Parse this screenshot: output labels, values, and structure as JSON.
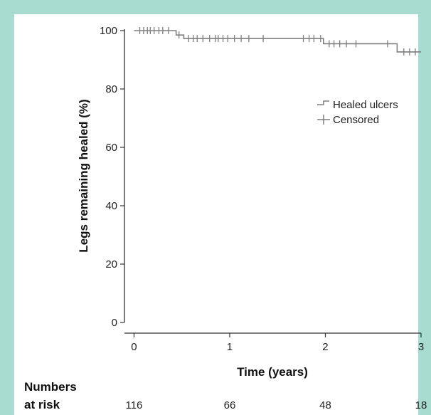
{
  "colors": {
    "frame_background": "#a8dcd0",
    "panel_background": "#ffffff",
    "curve": "#7f7f7f",
    "axis": "#333333"
  },
  "chart_data": {
    "type": "line",
    "subtype": "kaplan-meier",
    "title": "",
    "xlabel": "Time (years)",
    "ylabel": "Legs remaining healed (%)",
    "xlim": [
      -0.1,
      3.0
    ],
    "ylim": [
      0,
      100
    ],
    "xticks": [
      0,
      1,
      2,
      3
    ],
    "yticks": [
      0,
      20,
      40,
      60,
      80,
      100
    ],
    "grid": false,
    "legend": {
      "placement": "right",
      "entries": [
        {
          "label": "Healed ulcers",
          "symbol": "step-line"
        },
        {
          "label": "Censored",
          "symbol": "cross"
        }
      ]
    },
    "series": [
      {
        "name": "Healed ulcers",
        "steps": [
          {
            "x": 0.0,
            "y": 100
          },
          {
            "x": 0.44,
            "y": 98.5
          },
          {
            "x": 0.52,
            "y": 97.3
          },
          {
            "x": 1.98,
            "y": 95.5
          },
          {
            "x": 2.75,
            "y": 92.7
          },
          {
            "x": 3.0,
            "y": 92.7
          }
        ],
        "censored": [
          {
            "x": 0.06,
            "y": 100
          },
          {
            "x": 0.1,
            "y": 100
          },
          {
            "x": 0.14,
            "y": 100
          },
          {
            "x": 0.17,
            "y": 100
          },
          {
            "x": 0.21,
            "y": 100
          },
          {
            "x": 0.26,
            "y": 100
          },
          {
            "x": 0.3,
            "y": 100
          },
          {
            "x": 0.36,
            "y": 100
          },
          {
            "x": 0.47,
            "y": 98.5
          },
          {
            "x": 0.57,
            "y": 97.3
          },
          {
            "x": 0.62,
            "y": 97.3
          },
          {
            "x": 0.66,
            "y": 97.3
          },
          {
            "x": 0.72,
            "y": 97.3
          },
          {
            "x": 0.79,
            "y": 97.3
          },
          {
            "x": 0.85,
            "y": 97.3
          },
          {
            "x": 0.88,
            "y": 97.3
          },
          {
            "x": 0.93,
            "y": 97.3
          },
          {
            "x": 0.98,
            "y": 97.3
          },
          {
            "x": 1.05,
            "y": 97.3
          },
          {
            "x": 1.12,
            "y": 97.3
          },
          {
            "x": 1.2,
            "y": 97.3
          },
          {
            "x": 1.35,
            "y": 97.3
          },
          {
            "x": 1.77,
            "y": 97.3
          },
          {
            "x": 1.83,
            "y": 97.3
          },
          {
            "x": 1.88,
            "y": 97.3
          },
          {
            "x": 1.95,
            "y": 97.3
          },
          {
            "x": 2.04,
            "y": 95.5
          },
          {
            "x": 2.09,
            "y": 95.5
          },
          {
            "x": 2.15,
            "y": 95.5
          },
          {
            "x": 2.22,
            "y": 95.5
          },
          {
            "x": 2.32,
            "y": 95.5
          },
          {
            "x": 2.65,
            "y": 95.5
          },
          {
            "x": 2.82,
            "y": 92.7
          },
          {
            "x": 2.88,
            "y": 92.7
          },
          {
            "x": 2.94,
            "y": 92.7
          }
        ]
      }
    ],
    "numbers_at_risk": {
      "heading": [
        "Numbers",
        "at risk"
      ],
      "values": [
        {
          "x": 0,
          "n": "116"
        },
        {
          "x": 1,
          "n": "66"
        },
        {
          "x": 2,
          "n": "48"
        },
        {
          "x": 3,
          "n": "18"
        }
      ]
    }
  }
}
